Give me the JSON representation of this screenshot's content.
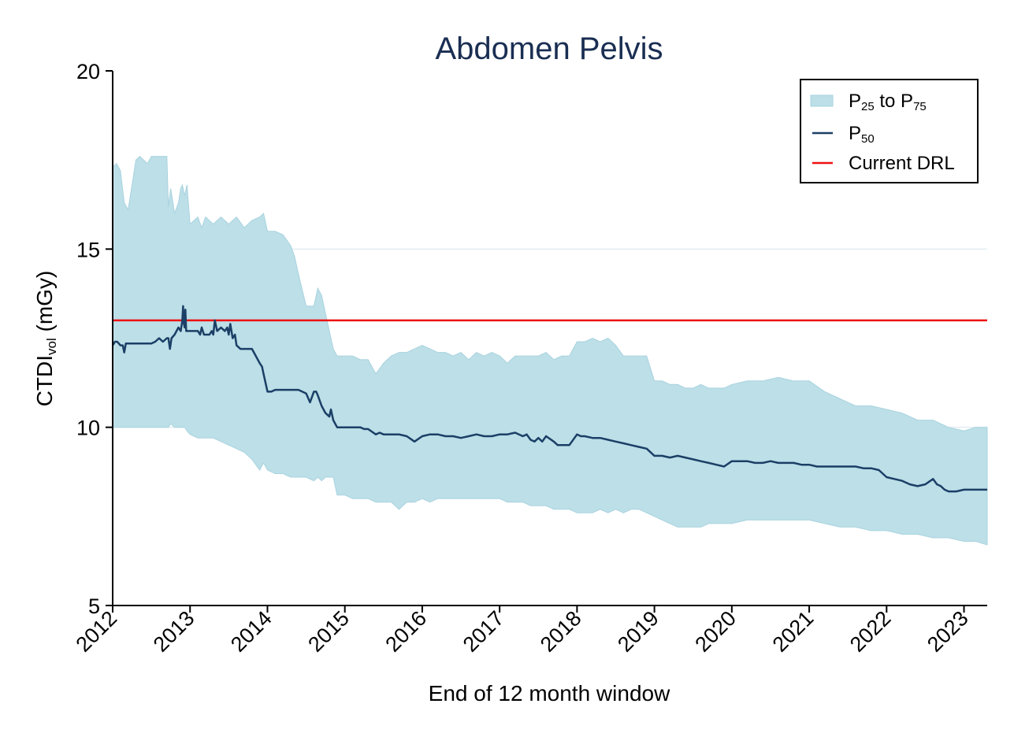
{
  "chart_data": {
    "type": "area",
    "title": "Abdomen Pelvis",
    "xlabel": "End of 12 month window",
    "ylabel": {
      "main": "CTDI",
      "sub": "vol",
      "unit": " (mGy)"
    },
    "xlim": [
      2012,
      2023.3
    ],
    "ylim": [
      5,
      20
    ],
    "x_ticks": [
      "2012",
      "2013",
      "2014",
      "2015",
      "2016",
      "2017",
      "2018",
      "2019",
      "2020",
      "2021",
      "2022",
      "2023"
    ],
    "y_ticks": [
      "5",
      "10",
      "15",
      "20"
    ],
    "grid": "horizontal",
    "legend_position": "top-right",
    "colors": {
      "band": "#bcdfe8",
      "median": "#1b3f66",
      "drl": "#ee1111",
      "title": "#1a2e52"
    },
    "legend": [
      {
        "kind": "band",
        "parts": [
          {
            "t": "P"
          },
          {
            "t": "25",
            "sub": true
          },
          {
            "t": " to P"
          },
          {
            "t": "75",
            "sub": true
          }
        ]
      },
      {
        "kind": "line",
        "parts": [
          {
            "t": "P"
          },
          {
            "t": "50",
            "sub": true
          }
        ]
      },
      {
        "kind": "drl",
        "parts": [
          {
            "t": "Current DRL"
          }
        ]
      }
    ],
    "drl": 13,
    "series": [
      {
        "name": "P25 to P75",
        "x": [
          2012.0,
          2012.05,
          2012.1,
          2012.15,
          2012.2,
          2012.25,
          2012.3,
          2012.35,
          2012.4,
          2012.45,
          2012.5,
          2012.55,
          2012.6,
          2012.7,
          2012.72,
          2012.75,
          2012.8,
          2012.85,
          2012.88,
          2012.9,
          2012.93,
          2012.96,
          2013.0,
          2013.1,
          2013.15,
          2013.2,
          2013.3,
          2013.4,
          2013.5,
          2013.6,
          2013.7,
          2013.8,
          2013.9,
          2013.95,
          2014.0,
          2014.1,
          2014.2,
          2014.3,
          2014.35,
          2014.4,
          2014.5,
          2014.6,
          2014.65,
          2014.7,
          2014.75,
          2014.8,
          2014.85,
          2014.9,
          2015.0,
          2015.1,
          2015.2,
          2015.3,
          2015.4,
          2015.5,
          2015.6,
          2015.7,
          2015.8,
          2015.9,
          2016.0,
          2016.1,
          2016.2,
          2016.3,
          2016.4,
          2016.5,
          2016.6,
          2016.7,
          2016.8,
          2016.9,
          2017.0,
          2017.1,
          2017.2,
          2017.3,
          2017.4,
          2017.5,
          2017.6,
          2017.7,
          2017.8,
          2017.9,
          2018.0,
          2018.1,
          2018.2,
          2018.3,
          2018.4,
          2018.5,
          2018.6,
          2018.7,
          2018.8,
          2018.9,
          2019.0,
          2019.1,
          2019.2,
          2019.3,
          2019.4,
          2019.5,
          2019.6,
          2019.7,
          2019.8,
          2019.9,
          2020.0,
          2020.2,
          2020.4,
          2020.6,
          2020.8,
          2021.0,
          2021.2,
          2021.4,
          2021.6,
          2021.8,
          2022.0,
          2022.2,
          2022.4,
          2022.6,
          2022.8,
          2023.0,
          2023.15,
          2023.3
        ],
        "upper": [
          17.3,
          17.4,
          17.2,
          16.3,
          16.1,
          16.8,
          17.5,
          17.6,
          17.5,
          17.4,
          17.6,
          17.6,
          17.6,
          17.6,
          16.2,
          16.7,
          16.0,
          16.3,
          16.7,
          16.8,
          16.5,
          16.8,
          15.7,
          15.9,
          15.6,
          15.9,
          15.7,
          15.9,
          15.7,
          15.9,
          15.6,
          15.8,
          15.9,
          16.0,
          15.5,
          15.5,
          15.4,
          15.1,
          14.8,
          14.3,
          13.4,
          13.4,
          13.9,
          13.7,
          13.2,
          12.7,
          12.2,
          12.0,
          12.0,
          12.0,
          11.9,
          11.9,
          11.5,
          11.8,
          12.0,
          12.1,
          12.1,
          12.2,
          12.3,
          12.2,
          12.1,
          12.1,
          12.0,
          12.1,
          11.9,
          12.1,
          12.0,
          12.1,
          12.0,
          11.8,
          12.0,
          12.0,
          12.0,
          12.0,
          12.1,
          11.9,
          12.0,
          12.0,
          12.4,
          12.4,
          12.5,
          12.4,
          12.5,
          12.3,
          12.0,
          12.0,
          12.0,
          12.0,
          11.3,
          11.3,
          11.2,
          11.2,
          11.1,
          11.1,
          11.2,
          11.1,
          11.1,
          11.1,
          11.2,
          11.3,
          11.3,
          11.4,
          11.3,
          11.3,
          11.0,
          10.8,
          10.6,
          10.6,
          10.5,
          10.4,
          10.2,
          10.2,
          10.0,
          9.9,
          10.0,
          10.0
        ],
        "lower": [
          10.0,
          10.0,
          10.0,
          10.0,
          10.0,
          10.0,
          10.0,
          10.0,
          10.0,
          10.0,
          10.0,
          10.0,
          10.0,
          10.0,
          10.0,
          10.1,
          10.0,
          10.0,
          10.0,
          10.0,
          10.0,
          9.9,
          9.8,
          9.7,
          9.7,
          9.7,
          9.7,
          9.6,
          9.5,
          9.4,
          9.3,
          9.1,
          8.8,
          9.0,
          8.8,
          8.7,
          8.7,
          8.6,
          8.6,
          8.6,
          8.6,
          8.5,
          8.6,
          8.5,
          8.6,
          8.6,
          8.6,
          8.1,
          8.1,
          8.0,
          8.0,
          8.0,
          7.9,
          7.9,
          7.9,
          7.7,
          7.9,
          7.9,
          8.0,
          7.9,
          8.0,
          8.0,
          8.0,
          8.0,
          8.0,
          8.0,
          8.0,
          8.0,
          8.0,
          7.9,
          7.9,
          7.9,
          7.8,
          7.8,
          7.8,
          7.7,
          7.7,
          7.7,
          7.6,
          7.6,
          7.6,
          7.7,
          7.6,
          7.7,
          7.6,
          7.7,
          7.7,
          7.6,
          7.5,
          7.4,
          7.3,
          7.2,
          7.2,
          7.2,
          7.2,
          7.3,
          7.3,
          7.3,
          7.3,
          7.4,
          7.4,
          7.4,
          7.4,
          7.4,
          7.3,
          7.2,
          7.2,
          7.1,
          7.1,
          7.0,
          7.0,
          6.9,
          6.9,
          6.8,
          6.8,
          6.7
        ]
      },
      {
        "name": "P50",
        "x": [
          2012.0,
          2012.03,
          2012.06,
          2012.1,
          2012.13,
          2012.15,
          2012.17,
          2012.2,
          2012.3,
          2012.4,
          2012.5,
          2012.55,
          2012.6,
          2012.65,
          2012.7,
          2012.72,
          2012.74,
          2012.76,
          2012.8,
          2012.85,
          2012.88,
          2012.9,
          2012.91,
          2012.92,
          2012.93,
          2012.94,
          2012.95,
          2013.0,
          2013.05,
          2013.1,
          2013.13,
          2013.15,
          2013.18,
          2013.2,
          2013.25,
          2013.28,
          2013.3,
          2013.32,
          2013.35,
          2013.4,
          2013.45,
          2013.48,
          2013.5,
          2013.52,
          2013.55,
          2013.58,
          2013.6,
          2013.65,
          2013.7,
          2013.75,
          2013.8,
          2013.85,
          2013.9,
          2013.93,
          2013.95,
          2013.98,
          2014.0,
          2014.05,
          2014.1,
          2014.2,
          2014.3,
          2014.4,
          2014.5,
          2014.55,
          2014.6,
          2014.63,
          2014.65,
          2014.7,
          2014.75,
          2014.8,
          2014.82,
          2014.85,
          2014.9,
          2015.0,
          2015.1,
          2015.2,
          2015.25,
          2015.3,
          2015.4,
          2015.45,
          2015.5,
          2015.6,
          2015.7,
          2015.8,
          2015.9,
          2016.0,
          2016.1,
          2016.2,
          2016.3,
          2016.4,
          2016.5,
          2016.6,
          2016.7,
          2016.8,
          2016.9,
          2017.0,
          2017.1,
          2017.2,
          2017.3,
          2017.35,
          2017.4,
          2017.45,
          2017.5,
          2017.55,
          2017.6,
          2017.7,
          2017.75,
          2017.8,
          2017.9,
          2018.0,
          2018.05,
          2018.1,
          2018.2,
          2018.3,
          2018.4,
          2018.5,
          2018.6,
          2018.7,
          2018.8,
          2018.9,
          2019.0,
          2019.1,
          2019.2,
          2019.3,
          2019.4,
          2019.5,
          2019.6,
          2019.7,
          2019.8,
          2019.9,
          2020.0,
          2020.1,
          2020.2,
          2020.3,
          2020.4,
          2020.5,
          2020.6,
          2020.7,
          2020.8,
          2020.9,
          2021.0,
          2021.1,
          2021.2,
          2021.3,
          2021.4,
          2021.5,
          2021.6,
          2021.7,
          2021.8,
          2021.9,
          2022.0,
          2022.1,
          2022.2,
          2022.3,
          2022.4,
          2022.5,
          2022.6,
          2022.65,
          2022.7,
          2022.75,
          2022.8,
          2022.9,
          2023.0,
          2023.1,
          2023.2,
          2023.3
        ],
        "values": [
          12.3,
          12.4,
          12.4,
          12.3,
          12.3,
          12.1,
          12.35,
          12.35,
          12.35,
          12.35,
          12.35,
          12.4,
          12.5,
          12.4,
          12.5,
          12.5,
          12.2,
          12.5,
          12.6,
          12.8,
          12.7,
          13.0,
          13.4,
          12.9,
          12.8,
          13.3,
          12.7,
          12.7,
          12.7,
          12.7,
          12.6,
          12.8,
          12.6,
          12.6,
          12.6,
          12.7,
          12.6,
          13.0,
          12.7,
          12.8,
          12.7,
          12.8,
          12.6,
          12.9,
          12.5,
          12.6,
          12.3,
          12.2,
          12.2,
          12.2,
          12.2,
          12.0,
          11.8,
          11.7,
          11.5,
          11.2,
          11.0,
          11.0,
          11.05,
          11.05,
          11.05,
          11.05,
          10.95,
          10.7,
          11.0,
          11.0,
          10.9,
          10.6,
          10.4,
          10.3,
          10.5,
          10.2,
          10.0,
          10.0,
          10.0,
          10.0,
          9.95,
          9.95,
          9.8,
          9.85,
          9.8,
          9.8,
          9.8,
          9.75,
          9.6,
          9.75,
          9.8,
          9.8,
          9.75,
          9.75,
          9.7,
          9.75,
          9.8,
          9.75,
          9.75,
          9.8,
          9.8,
          9.85,
          9.75,
          9.8,
          9.65,
          9.6,
          9.7,
          9.6,
          9.75,
          9.6,
          9.5,
          9.5,
          9.5,
          9.8,
          9.75,
          9.75,
          9.7,
          9.7,
          9.65,
          9.6,
          9.55,
          9.5,
          9.45,
          9.4,
          9.2,
          9.2,
          9.15,
          9.2,
          9.15,
          9.1,
          9.05,
          9.0,
          8.95,
          8.9,
          9.05,
          9.05,
          9.05,
          9.0,
          9.0,
          9.05,
          9.0,
          9.0,
          9.0,
          8.95,
          8.95,
          8.9,
          8.9,
          8.9,
          8.9,
          8.9,
          8.9,
          8.85,
          8.85,
          8.8,
          8.6,
          8.55,
          8.5,
          8.4,
          8.35,
          8.4,
          8.55,
          8.4,
          8.35,
          8.25,
          8.2,
          8.2,
          8.25,
          8.25,
          8.25,
          8.25
        ]
      }
    ]
  }
}
